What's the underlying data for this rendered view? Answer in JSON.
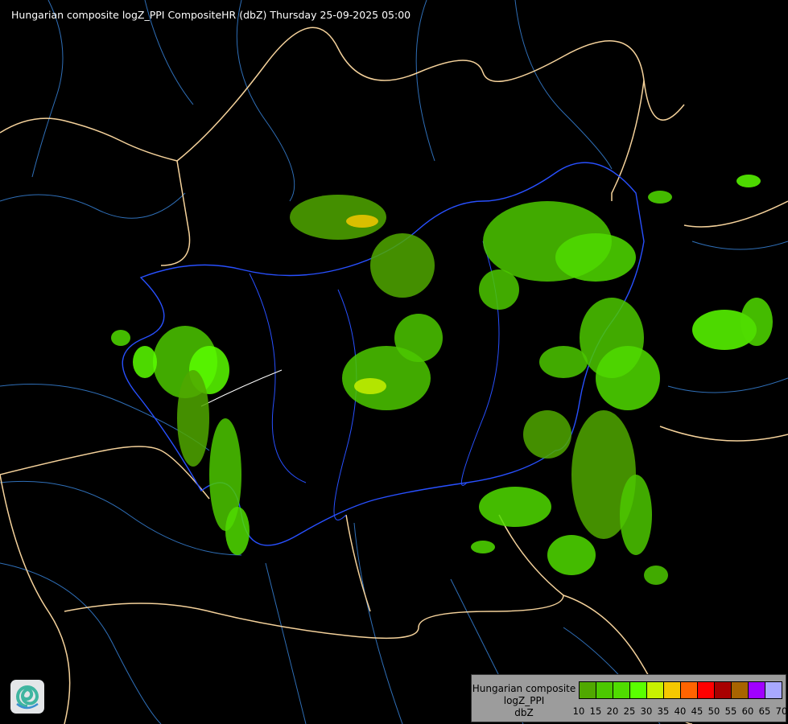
{
  "title": "Hungarian composite logZ_PPI CompositeHR (dbZ) Thursday 25-09-2025 05:00",
  "legend": {
    "lines": [
      "Hungarian composite",
      "logZ_PPI",
      "dbZ"
    ],
    "ticks": [
      "10",
      "15",
      "20",
      "25",
      "30",
      "35",
      "40",
      "45",
      "50",
      "55",
      "60",
      "65",
      "70"
    ],
    "colors": [
      "#50a800",
      "#4cc800",
      "#50dc00",
      "#5aff00",
      "#c8f000",
      "#f5c800",
      "#ff6400",
      "#ff0000",
      "#a80000",
      "#a86400",
      "#a000ff",
      "#a8a8ff"
    ]
  },
  "map_colors": {
    "background": "#000000",
    "country_border": "#f5d29b",
    "hungary_border": "#2850ff",
    "rivers": "#2f6fb8",
    "lakes": "#ffffff"
  },
  "logo": {
    "icon": "swirl-logo-icon"
  }
}
